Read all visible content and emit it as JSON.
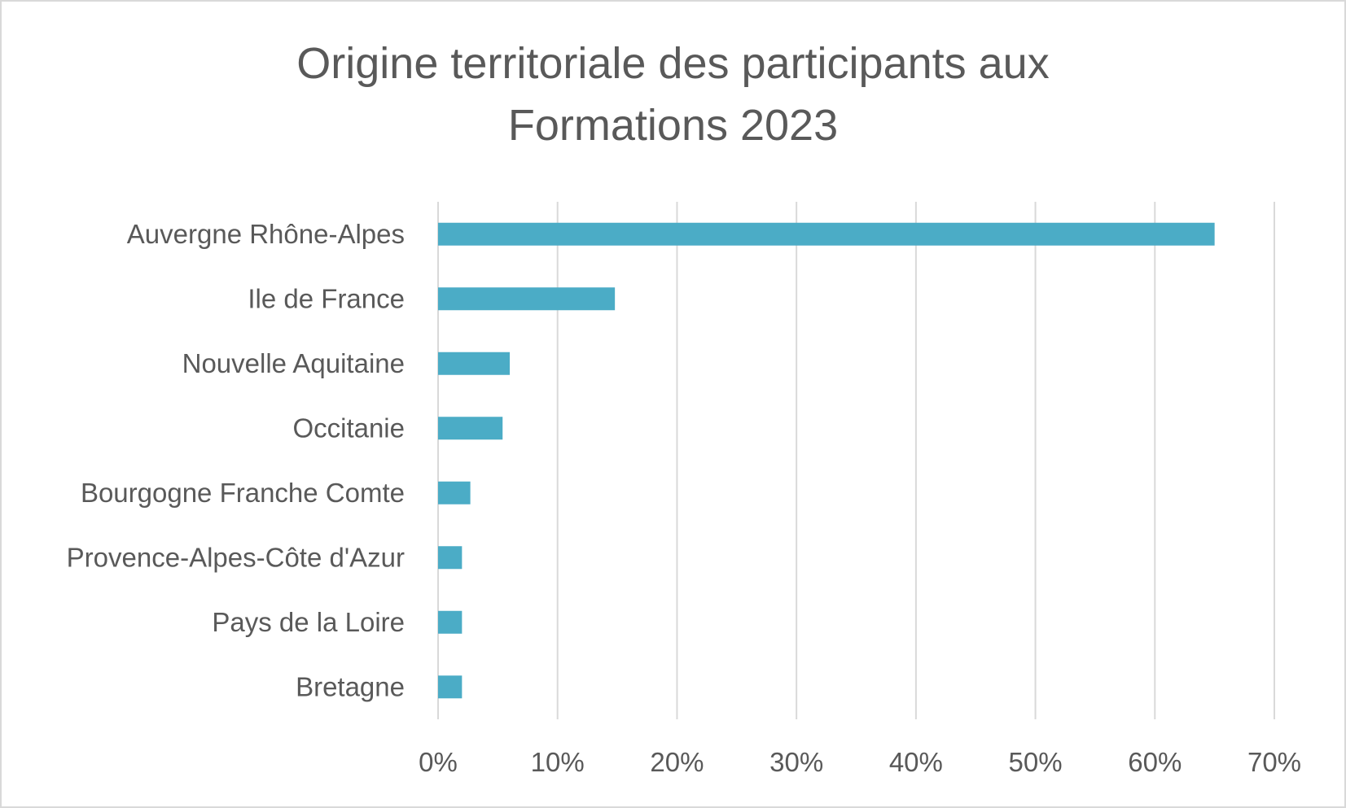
{
  "chart_data": {
    "type": "bar",
    "orientation": "horizontal",
    "title_lines": [
      "Origine territoriale des participants aux",
      "Formations 2023"
    ],
    "categories": [
      "Auvergne Rhône-Alpes",
      "Ile de France",
      "Nouvelle Aquitaine",
      "Occitanie",
      "Bourgogne Franche Comte",
      "Provence-Alpes-Côte d'Azur",
      "Pays de la Loire",
      "Bretagne"
    ],
    "values": [
      65,
      14.8,
      6,
      5.4,
      2.7,
      2,
      2,
      2
    ],
    "unit": "%",
    "xlim": [
      0,
      70
    ],
    "ticks": [
      0,
      10,
      20,
      30,
      40,
      50,
      60,
      70
    ],
    "tick_labels": [
      "0%",
      "10%",
      "20%",
      "30%",
      "40%",
      "50%",
      "60%",
      "70%"
    ],
    "xlabel": "",
    "ylabel": "",
    "grid": "vertical",
    "legend": "none",
    "bar_color": "#4bacc6",
    "grid_color": "#d9d9d9",
    "text_color": "#595959"
  }
}
